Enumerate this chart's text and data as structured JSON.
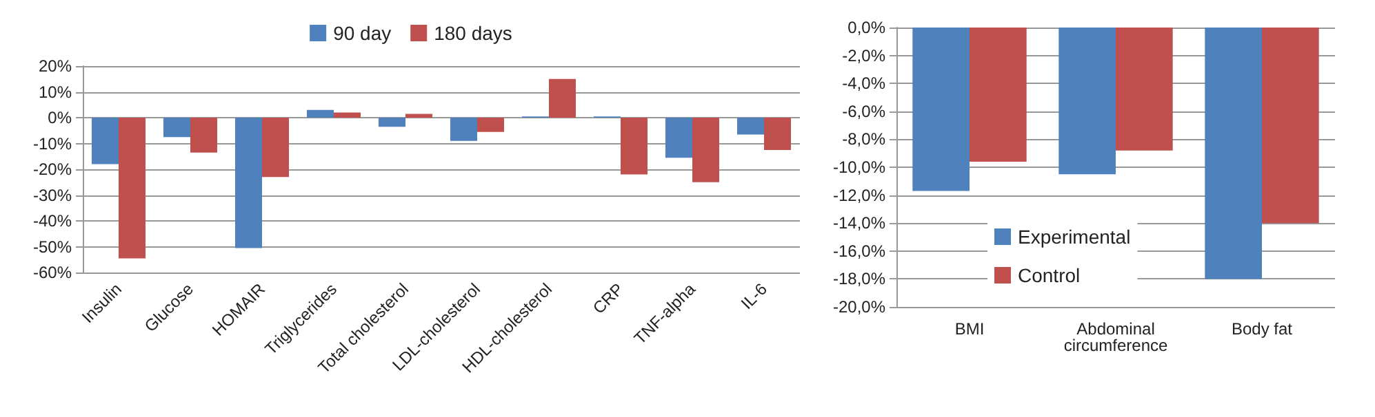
{
  "chart_data": [
    {
      "type": "bar",
      "categories": [
        "Insulin",
        "Glucose",
        "HOMAIR",
        "Triglycerides",
        "Total cholesterol",
        "LDL-cholesterol",
        "HDL-cholesterol",
        "CRP",
        "TNF-alpha",
        "IL-6"
      ],
      "series": [
        {
          "name": "90 day",
          "color": "#4f81bd",
          "values": [
            -18,
            -7.5,
            -50.5,
            3,
            -3.5,
            -9,
            0.5,
            0.5,
            -15.5,
            -6.5
          ]
        },
        {
          "name": "180 days",
          "color": "#c0504d",
          "values": [
            -54.5,
            -13.5,
            -23,
            2,
            1.5,
            -5.5,
            15,
            -22,
            -25,
            -12.5
          ]
        }
      ],
      "ylim": [
        -60,
        20
      ],
      "yticks": [
        {
          "value": 20,
          "label": "20%"
        },
        {
          "value": 10,
          "label": "10%"
        },
        {
          "value": 0,
          "label": "0%"
        },
        {
          "value": -10,
          "label": "-10%"
        },
        {
          "value": -20,
          "label": "-20%"
        },
        {
          "value": -30,
          "label": "-30%"
        },
        {
          "value": -40,
          "label": "-40%"
        },
        {
          "value": -50,
          "label": "-50%"
        },
        {
          "value": -60,
          "label": "-60%"
        }
      ],
      "grid": "y",
      "legend": "top"
    },
    {
      "type": "bar",
      "categories": [
        "BMI",
        "Abdominal\ncircumference",
        "Body fat"
      ],
      "series": [
        {
          "name": "Experimental",
          "color": "#4f81bd",
          "values": [
            -11.7,
            -10.5,
            -18
          ]
        },
        {
          "name": "Control",
          "color": "#c0504d",
          "values": [
            -9.6,
            -8.8,
            -14
          ]
        }
      ],
      "ylim": [
        -20,
        0
      ],
      "yticks": [
        {
          "value": 0,
          "label": "0,0%"
        },
        {
          "value": -2,
          "label": "-2,0%"
        },
        {
          "value": -4,
          "label": "-4,0%"
        },
        {
          "value": -6,
          "label": "-6,0%"
        },
        {
          "value": -8,
          "label": "-8,0%"
        },
        {
          "value": -10,
          "label": "-10,0%"
        },
        {
          "value": -12,
          "label": "-12,0%"
        },
        {
          "value": -14,
          "label": "-14,0%"
        },
        {
          "value": -16,
          "label": "-16,0%"
        },
        {
          "value": -18,
          "label": "-18,0%"
        },
        {
          "value": -20,
          "label": "-20,0%"
        }
      ],
      "grid": "y",
      "legend": "bottom left"
    }
  ]
}
